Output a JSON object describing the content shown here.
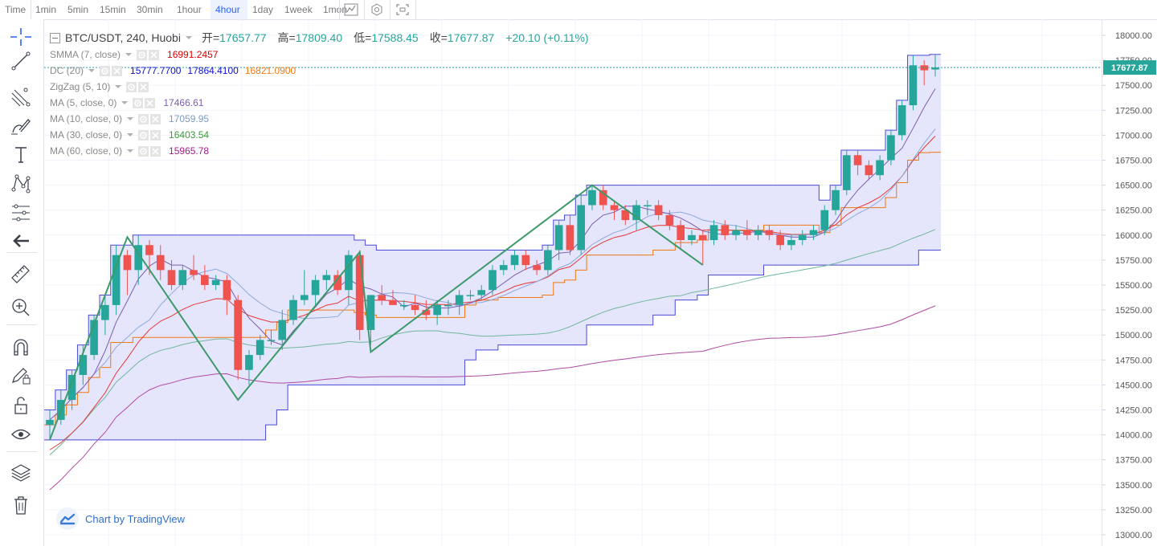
{
  "toolbar": {
    "intervals": [
      "Time",
      "1min",
      "5min",
      "15min",
      "30min",
      "1hour",
      "4hour",
      "1day",
      "1week",
      "1mon"
    ],
    "active": "4hour",
    "icons": [
      "chart-style-icon",
      "settings-icon",
      "fullscreen-icon"
    ]
  },
  "sidebar": {
    "tools": [
      "crosshair-icon",
      "trend-line-icon",
      "fib-icon",
      "brush-icon",
      "text-icon",
      "pattern-icon",
      "prediction-icon",
      "back-arrow-icon",
      "ruler-icon",
      "zoom-in-icon",
      "magnet-icon",
      "lock-drawing-icon",
      "unlock-icon",
      "eye-icon",
      "layers-icon",
      "trash-icon"
    ]
  },
  "legend": {
    "symbol": "BTC/USDT, 240, Huobi",
    "open_label": "开=",
    "open": "17657.77",
    "high_label": "高=",
    "high": "17809.40",
    "low_label": "低=",
    "low": "17588.45",
    "close_label": "收=",
    "close": "17677.87",
    "change": "+20.10 (+0.11%)",
    "indicators": [
      {
        "name": "SMMA (7, close)",
        "values": [
          {
            "v": "16991.2457",
            "color": "#e00000"
          }
        ]
      },
      {
        "name": "DC (20)",
        "values": [
          {
            "v": "15777.7700",
            "color": "#1010cc"
          },
          {
            "v": "17864.4100",
            "color": "#1010cc"
          },
          {
            "v": "16821.0900",
            "color": "#f07810"
          }
        ]
      },
      {
        "name": "ZigZag (5, 10)",
        "values": []
      },
      {
        "name": "MA (5, close, 0)",
        "values": [
          {
            "v": "17466.61",
            "color": "#7c5cb0"
          }
        ]
      },
      {
        "name": "MA (10, close, 0)",
        "values": [
          {
            "v": "17059.95",
            "color": "#7b9bc4"
          }
        ]
      },
      {
        "name": "MA (30, close, 0)",
        "values": [
          {
            "v": "16403.54",
            "color": "#3d9a3d"
          }
        ]
      },
      {
        "name": "MA (60, close, 0)",
        "values": [
          {
            "v": "15965.78",
            "color": "#a0208a"
          }
        ]
      }
    ]
  },
  "price_label": "17677.87",
  "branding": "Chart by TradingView",
  "colors": {
    "up": "#26a69a",
    "down": "#ef5350",
    "accent": "#2962ff",
    "dc_fill": "#e0e0fb",
    "dc_border": "#4a4ad8"
  },
  "chart_data": {
    "type": "candlestick",
    "title": "BTC/USDT, 240, Huobi",
    "ylim": [
      13000,
      18000
    ],
    "yticks": [
      18000,
      17750,
      17500,
      17250,
      17000,
      16750,
      16500,
      16250,
      16000,
      15750,
      15500,
      15250,
      15000,
      14750,
      14500,
      14250,
      14000,
      13750,
      13500,
      13250,
      13000
    ],
    "grid": true,
    "last_price": 17677.87,
    "candles": [
      [
        14100,
        14250,
        13950,
        14150
      ],
      [
        14150,
        14450,
        14100,
        14350
      ],
      [
        14350,
        14650,
        14250,
        14600
      ],
      [
        14600,
        14900,
        14500,
        14800
      ],
      [
        14800,
        15200,
        14750,
        15150
      ],
      [
        15150,
        15400,
        15000,
        15300
      ],
      [
        15300,
        15900,
        15200,
        15800
      ],
      [
        15800,
        15850,
        15400,
        15650
      ],
      [
        15650,
        16000,
        15500,
        15900
      ],
      [
        15900,
        15950,
        15600,
        15800
      ],
      [
        15800,
        15900,
        15550,
        15650
      ],
      [
        15650,
        15750,
        15450,
        15500
      ],
      [
        15500,
        15700,
        15450,
        15650
      ],
      [
        15650,
        15800,
        15550,
        15600
      ],
      [
        15600,
        15700,
        15450,
        15500
      ],
      [
        15500,
        15600,
        15450,
        15550
      ],
      [
        15550,
        15600,
        15200,
        15350
      ],
      [
        15350,
        15400,
        14550,
        14650
      ],
      [
        14650,
        14850,
        14500,
        14800
      ],
      [
        14800,
        15000,
        14750,
        14950
      ],
      [
        14950,
        15050,
        14900,
        14950
      ],
      [
        14950,
        15250,
        14850,
        15150
      ],
      [
        15150,
        15400,
        15100,
        15350
      ],
      [
        15350,
        15650,
        15300,
        15400
      ],
      [
        15400,
        15600,
        15300,
        15550
      ],
      [
        15550,
        15650,
        15450,
        15600
      ],
      [
        15600,
        15650,
        15400,
        15450
      ],
      [
        15450,
        15850,
        15300,
        15800
      ],
      [
        15800,
        15850,
        14950,
        15050
      ],
      [
        15050,
        15400,
        14900,
        15400
      ],
      [
        15400,
        15500,
        15300,
        15350
      ],
      [
        15350,
        15450,
        15300,
        15300
      ],
      [
        15300,
        15350,
        15250,
        15300
      ],
      [
        15300,
        15400,
        15200,
        15250
      ],
      [
        15250,
        15350,
        15150,
        15200
      ],
      [
        15200,
        15350,
        15100,
        15300
      ],
      [
        15300,
        15350,
        15200,
        15300
      ],
      [
        15300,
        15450,
        15200,
        15400
      ],
      [
        15400,
        15450,
        15350,
        15400
      ],
      [
        15400,
        15500,
        15350,
        15450
      ],
      [
        15450,
        15700,
        15400,
        15650
      ],
      [
        15650,
        15750,
        15600,
        15700
      ],
      [
        15700,
        15850,
        15650,
        15800
      ],
      [
        15800,
        15850,
        15650,
        15700
      ],
      [
        15700,
        15750,
        15600,
        15650
      ],
      [
        15650,
        15900,
        15600,
        15850
      ],
      [
        15850,
        16150,
        15750,
        16100
      ],
      [
        16100,
        16200,
        15800,
        15850
      ],
      [
        15850,
        16400,
        15800,
        16300
      ],
      [
        16300,
        16500,
        16250,
        16450
      ],
      [
        16450,
        16500,
        16250,
        16300
      ],
      [
        16300,
        16350,
        16150,
        16250
      ],
      [
        16250,
        16300,
        16100,
        16150
      ],
      [
        16150,
        16350,
        16050,
        16300
      ],
      [
        16300,
        16350,
        16200,
        16300
      ],
      [
        16300,
        16350,
        16150,
        16200
      ],
      [
        16200,
        16250,
        16050,
        16100
      ],
      [
        16100,
        16150,
        15850,
        15950
      ],
      [
        15950,
        16050,
        15900,
        16000
      ],
      [
        16000,
        16050,
        15700,
        15950
      ],
      [
        15950,
        16150,
        15900,
        16100
      ],
      [
        16100,
        16150,
        15950,
        16000
      ],
      [
        16000,
        16100,
        15950,
        16050
      ],
      [
        16050,
        16150,
        15950,
        16000
      ],
      [
        16000,
        16100,
        15950,
        16050
      ],
      [
        16050,
        16100,
        15950,
        16000
      ],
      [
        16000,
        16050,
        15850,
        15900
      ],
      [
        15900,
        16000,
        15850,
        15950
      ],
      [
        15950,
        16050,
        15900,
        16000
      ],
      [
        16000,
        16100,
        15950,
        16050
      ],
      [
        16050,
        16300,
        16000,
        16250
      ],
      [
        16250,
        16500,
        16200,
        16450
      ],
      [
        16450,
        16850,
        16400,
        16800
      ],
      [
        16800,
        16850,
        16600,
        16700
      ],
      [
        16700,
        16750,
        16550,
        16600
      ],
      [
        16600,
        16800,
        16550,
        16750
      ],
      [
        16750,
        17050,
        16700,
        17000
      ],
      [
        17000,
        17350,
        16950,
        17300
      ],
      [
        17300,
        17800,
        17250,
        17700
      ],
      [
        17700,
        17750,
        17500,
        17650
      ],
      [
        17658,
        17809,
        17588,
        17678
      ]
    ]
  }
}
